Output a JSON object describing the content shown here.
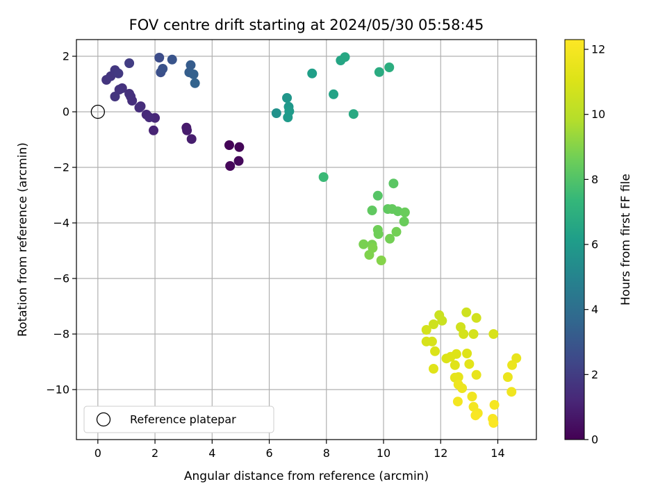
{
  "chart_data": {
    "type": "scatter",
    "title": "FOV centre drift starting at 2024/05/30 05:58:45",
    "xlabel": "Angular distance from reference (arcmin)",
    "ylabel": "Rotation from reference (arcmin)",
    "xlim": [
      -0.75,
      15.35
    ],
    "ylim": [
      -11.8,
      2.6
    ],
    "x_ticks": [
      0,
      2,
      4,
      6,
      8,
      10,
      12,
      14
    ],
    "y_ticks": [
      -10,
      -8,
      -6,
      -4,
      -2,
      0,
      2
    ],
    "grid": true,
    "colormap": "viridis",
    "colorbar": {
      "label": "Hours from first FF file",
      "min": 0,
      "max": 12.3,
      "ticks": [
        0,
        2,
        4,
        6,
        8,
        10,
        12
      ]
    },
    "legend": {
      "entries": [
        "Reference platepar"
      ],
      "placement": "lower-left"
    },
    "reference_point": {
      "x": 0,
      "y": 0
    },
    "points": [
      {
        "x": 4.6,
        "y": -1.2,
        "c": 0.1
      },
      {
        "x": 4.95,
        "y": -1.27,
        "c": 0.15
      },
      {
        "x": 4.63,
        "y": -1.95,
        "c": 0.2
      },
      {
        "x": 4.93,
        "y": -1.77,
        "c": 0.25
      },
      {
        "x": 3.1,
        "y": -0.57,
        "c": 0.8
      },
      {
        "x": 3.12,
        "y": -0.67,
        "c": 0.85
      },
      {
        "x": 3.28,
        "y": -0.98,
        "c": 0.9
      },
      {
        "x": 1.95,
        "y": -0.67,
        "c": 1.1
      },
      {
        "x": 2.0,
        "y": -0.22,
        "c": 1.2
      },
      {
        "x": 1.7,
        "y": -0.1,
        "c": 1.3
      },
      {
        "x": 1.8,
        "y": -0.2,
        "c": 1.35
      },
      {
        "x": 1.5,
        "y": 0.2,
        "c": 1.4
      },
      {
        "x": 1.45,
        "y": 0.15,
        "c": 1.45
      },
      {
        "x": 1.2,
        "y": 0.4,
        "c": 1.5
      },
      {
        "x": 1.15,
        "y": 0.55,
        "c": 1.5
      },
      {
        "x": 1.1,
        "y": 0.65,
        "c": 1.55
      },
      {
        "x": 0.85,
        "y": 0.85,
        "c": 1.6
      },
      {
        "x": 0.75,
        "y": 0.8,
        "c": 1.65
      },
      {
        "x": 0.6,
        "y": 0.55,
        "c": 1.7
      },
      {
        "x": 0.3,
        "y": 1.15,
        "c": 1.7
      },
      {
        "x": 0.45,
        "y": 1.28,
        "c": 1.75
      },
      {
        "x": 0.6,
        "y": 1.5,
        "c": 1.8
      },
      {
        "x": 0.72,
        "y": 1.38,
        "c": 1.85
      },
      {
        "x": 1.1,
        "y": 1.75,
        "c": 2.0
      },
      {
        "x": 2.15,
        "y": 1.95,
        "c": 2.6
      },
      {
        "x": 2.2,
        "y": 1.42,
        "c": 2.7
      },
      {
        "x": 2.27,
        "y": 1.55,
        "c": 2.8
      },
      {
        "x": 2.6,
        "y": 1.88,
        "c": 2.9
      },
      {
        "x": 3.25,
        "y": 1.68,
        "c": 3.2
      },
      {
        "x": 3.2,
        "y": 1.42,
        "c": 3.3
      },
      {
        "x": 3.35,
        "y": 1.35,
        "c": 3.4
      },
      {
        "x": 3.4,
        "y": 1.03,
        "c": 3.5
      },
      {
        "x": 6.25,
        "y": -0.05,
        "c": 5.6
      },
      {
        "x": 6.62,
        "y": 0.5,
        "c": 5.8
      },
      {
        "x": 6.68,
        "y": 0.18,
        "c": 5.9
      },
      {
        "x": 6.7,
        "y": 0.02,
        "c": 6.0
      },
      {
        "x": 6.65,
        "y": -0.2,
        "c": 6.0
      },
      {
        "x": 7.5,
        "y": 1.38,
        "c": 6.2
      },
      {
        "x": 8.25,
        "y": 0.63,
        "c": 6.4
      },
      {
        "x": 8.5,
        "y": 1.85,
        "c": 6.5
      },
      {
        "x": 8.65,
        "y": 1.97,
        "c": 6.6
      },
      {
        "x": 8.95,
        "y": -0.08,
        "c": 6.7
      },
      {
        "x": 9.85,
        "y": 1.43,
        "c": 6.8
      },
      {
        "x": 10.2,
        "y": 1.6,
        "c": 6.9
      },
      {
        "x": 7.9,
        "y": -2.35,
        "c": 7.5
      },
      {
        "x": 9.8,
        "y": -3.02,
        "c": 8.1
      },
      {
        "x": 10.35,
        "y": -2.58,
        "c": 8.2
      },
      {
        "x": 9.6,
        "y": -3.55,
        "c": 8.3
      },
      {
        "x": 10.15,
        "y": -3.5,
        "c": 8.3
      },
      {
        "x": 10.3,
        "y": -3.5,
        "c": 8.4
      },
      {
        "x": 10.5,
        "y": -3.58,
        "c": 8.4
      },
      {
        "x": 10.75,
        "y": -3.62,
        "c": 8.5
      },
      {
        "x": 10.72,
        "y": -3.95,
        "c": 8.5
      },
      {
        "x": 9.8,
        "y": -4.25,
        "c": 8.6
      },
      {
        "x": 9.82,
        "y": -4.4,
        "c": 8.6
      },
      {
        "x": 10.45,
        "y": -4.32,
        "c": 8.7
      },
      {
        "x": 10.22,
        "y": -4.57,
        "c": 8.7
      },
      {
        "x": 9.3,
        "y": -4.77,
        "c": 8.8
      },
      {
        "x": 9.6,
        "y": -4.78,
        "c": 8.8
      },
      {
        "x": 9.62,
        "y": -4.9,
        "c": 8.9
      },
      {
        "x": 9.5,
        "y": -5.15,
        "c": 8.9
      },
      {
        "x": 9.92,
        "y": -5.35,
        "c": 9.0
      },
      {
        "x": 11.95,
        "y": -7.32,
        "c": 10.5
      },
      {
        "x": 12.05,
        "y": -7.52,
        "c": 10.5
      },
      {
        "x": 11.75,
        "y": -7.65,
        "c": 10.6
      },
      {
        "x": 12.9,
        "y": -7.22,
        "c": 10.6
      },
      {
        "x": 13.25,
        "y": -7.42,
        "c": 10.7
      },
      {
        "x": 12.7,
        "y": -7.75,
        "c": 10.7
      },
      {
        "x": 11.5,
        "y": -7.85,
        "c": 10.8
      },
      {
        "x": 12.8,
        "y": -8.0,
        "c": 10.8
      },
      {
        "x": 13.15,
        "y": -8.0,
        "c": 10.8
      },
      {
        "x": 13.85,
        "y": -8.0,
        "c": 10.9
      },
      {
        "x": 11.5,
        "y": -8.27,
        "c": 10.9
      },
      {
        "x": 11.7,
        "y": -8.27,
        "c": 10.9
      },
      {
        "x": 11.8,
        "y": -8.62,
        "c": 11.0
      },
      {
        "x": 12.2,
        "y": -8.88,
        "c": 11.0
      },
      {
        "x": 12.35,
        "y": -8.82,
        "c": 11.1
      },
      {
        "x": 12.55,
        "y": -8.72,
        "c": 11.1
      },
      {
        "x": 12.92,
        "y": -8.7,
        "c": 11.1
      },
      {
        "x": 11.75,
        "y": -9.25,
        "c": 11.2
      },
      {
        "x": 12.5,
        "y": -9.12,
        "c": 11.2
      },
      {
        "x": 13.0,
        "y": -9.08,
        "c": 11.3
      },
      {
        "x": 12.5,
        "y": -9.57,
        "c": 11.4
      },
      {
        "x": 12.62,
        "y": -9.55,
        "c": 11.4
      },
      {
        "x": 13.25,
        "y": -9.47,
        "c": 11.5
      },
      {
        "x": 14.65,
        "y": -8.87,
        "c": 11.5
      },
      {
        "x": 14.5,
        "y": -9.12,
        "c": 11.6
      },
      {
        "x": 14.35,
        "y": -9.55,
        "c": 11.6
      },
      {
        "x": 12.62,
        "y": -9.82,
        "c": 11.7
      },
      {
        "x": 12.75,
        "y": -9.95,
        "c": 11.7
      },
      {
        "x": 14.48,
        "y": -10.08,
        "c": 11.8
      },
      {
        "x": 13.1,
        "y": -10.25,
        "c": 11.8
      },
      {
        "x": 12.6,
        "y": -10.43,
        "c": 11.9
      },
      {
        "x": 13.15,
        "y": -10.62,
        "c": 11.9
      },
      {
        "x": 13.88,
        "y": -10.55,
        "c": 12.0
      },
      {
        "x": 13.3,
        "y": -10.85,
        "c": 12.0
      },
      {
        "x": 13.22,
        "y": -10.93,
        "c": 12.1
      },
      {
        "x": 13.82,
        "y": -11.05,
        "c": 12.1
      },
      {
        "x": 13.85,
        "y": -11.2,
        "c": 12.2
      }
    ]
  }
}
